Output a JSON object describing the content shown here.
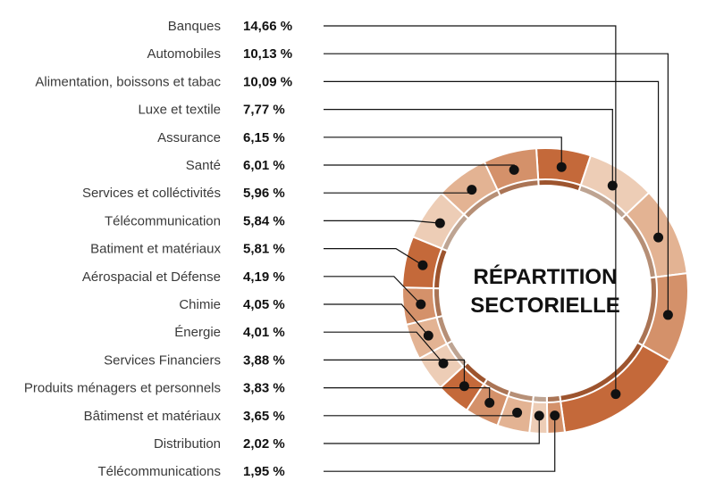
{
  "chart_data": {
    "type": "donut",
    "title_lines": [
      "RÉPARTITION",
      "SECTORIELLE"
    ],
    "unit_suffix": " %",
    "categories": [
      "Banques",
      "Automobiles",
      "Alimentation, boissons et tabac",
      "Luxe et textile",
      "Assurance",
      "Santé",
      "Services et colléctivités",
      "Télécommunication",
      "Batiment et matériaux",
      "Aérospacial et Défense",
      "Chimie",
      "Énergie",
      "Services Financiers",
      "Produits ménagers et personnels",
      "Bâtimenst et matériaux",
      "Distribution",
      "Télécommunications"
    ],
    "values": [
      14.66,
      10.13,
      10.09,
      7.77,
      6.15,
      6.01,
      5.96,
      5.84,
      5.81,
      4.19,
      4.05,
      4.01,
      3.88,
      3.83,
      3.65,
      2.02,
      1.95
    ],
    "value_labels": [
      "14,66 %",
      "10,13 %",
      "10,09 %",
      "7,77 %",
      "6,15 %",
      "6,01 %",
      "5,96 %",
      "5,84 %",
      "5,81 %",
      "4,19 %",
      "4,05 %",
      "4,01 %",
      "3,88 %",
      "3,83 %",
      "3,65 %",
      "2,02 %",
      "1,95 %"
    ],
    "segment_colors": [
      "#c4693a",
      "#d4916a",
      "#e3b393",
      "#edcdb6",
      "#c4693a",
      "#d4916a",
      "#e3b393",
      "#edcdb6",
      "#c4693a",
      "#d4916a",
      "#e3b393",
      "#edcdb6",
      "#c4693a",
      "#d4916a",
      "#e3b393",
      "#edcdb6",
      "#d4916a"
    ],
    "legend_placement": "left",
    "grid": false
  }
}
